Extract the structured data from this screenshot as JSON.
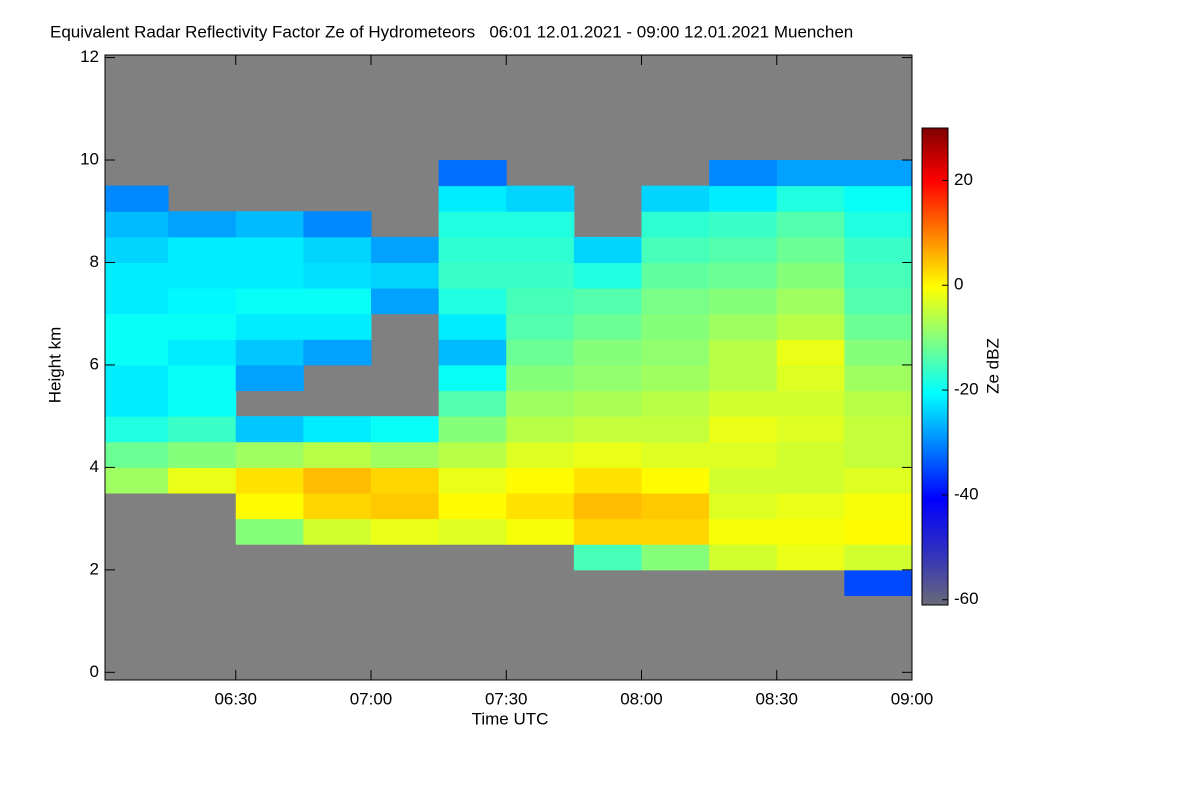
{
  "chart_data": {
    "type": "heatmap",
    "title": "Equivalent Radar Reflectivity Factor Ze of Hydrometeors   06:01 12.01.2021 - 09:00 12.01.2021 Muenchen",
    "xlabel": "Time UTC",
    "ylabel": "Height km",
    "colorbar_label": "Ze dBZ",
    "xlim": [
      361,
      540
    ],
    "xticks": [
      {
        "value": 390,
        "label": "06:30"
      },
      {
        "value": 420,
        "label": "07:00"
      },
      {
        "value": 450,
        "label": "07:30"
      },
      {
        "value": 480,
        "label": "08:00"
      },
      {
        "value": 510,
        "label": "08:30"
      },
      {
        "value": 540,
        "label": "09:00"
      }
    ],
    "ylim": [
      -0.15,
      12.05
    ],
    "yticks": [
      0,
      2,
      4,
      6,
      8,
      10,
      12
    ],
    "x_edges": [
      361,
      375,
      390,
      405,
      420,
      435,
      450,
      465,
      480,
      495,
      510,
      525,
      540
    ],
    "y_edges": [
      0,
      0.5,
      1,
      1.5,
      2,
      2.5,
      3,
      3.5,
      4,
      4.5,
      5,
      5.5,
      6,
      6.5,
      7,
      7.5,
      8,
      8.5,
      9,
      9.5,
      10,
      10.5,
      11,
      11.5,
      12
    ],
    "values": [
      [
        null,
        null,
        null,
        null,
        null,
        null,
        null,
        -8,
        -12,
        -18,
        -22,
        -22,
        -20,
        -20,
        -22,
        -22,
        -24,
        -26,
        -30,
        null,
        null,
        null,
        null,
        null
      ],
      [
        null,
        null,
        null,
        null,
        null,
        null,
        null,
        -2,
        -10,
        -16,
        -20,
        -20,
        -22,
        -20,
        -21,
        -22,
        -22,
        -28,
        null,
        null,
        null,
        null,
        null,
        null
      ],
      [
        null,
        null,
        null,
        null,
        null,
        -10,
        0,
        2,
        -8,
        -25,
        null,
        -28,
        -25,
        -22,
        -20,
        -22,
        -22,
        -26,
        null,
        null,
        null,
        null,
        null,
        null
      ],
      [
        null,
        null,
        null,
        null,
        null,
        -4,
        3,
        5,
        -6,
        -22,
        null,
        null,
        -28,
        -22,
        -20,
        -23,
        -24,
        -30,
        null,
        null,
        null,
        null,
        null,
        null
      ],
      [
        null,
        null,
        null,
        null,
        null,
        -2,
        4,
        3,
        -8,
        -20,
        null,
        null,
        null,
        null,
        -28,
        -24,
        -28,
        null,
        null,
        null,
        null,
        null,
        null,
        null
      ],
      [
        null,
        null,
        null,
        null,
        null,
        -3,
        0,
        -2,
        -6,
        -10,
        -14,
        -20,
        -26,
        -22,
        -18,
        -16,
        -17,
        -18,
        -22,
        -32,
        null,
        null,
        null,
        null
      ],
      [
        null,
        null,
        null,
        null,
        null,
        -1,
        2,
        0,
        -3,
        -6,
        -8,
        -10,
        -12,
        -14,
        -15,
        -16,
        -17,
        -18,
        -24,
        null,
        null,
        null,
        null,
        null
      ],
      [
        null,
        null,
        null,
        null,
        -15,
        3,
        5,
        2,
        -2,
        -5,
        -7,
        -9,
        -10,
        -12,
        -14,
        -18,
        -24,
        null,
        null,
        null,
        null,
        null,
        null,
        null
      ],
      [
        null,
        null,
        null,
        null,
        -10,
        3,
        4,
        0,
        -3,
        -5,
        -6,
        -8,
        -9,
        -10,
        -11,
        -13,
        -15,
        -17,
        -24,
        null,
        null,
        null,
        null,
        null
      ],
      [
        null,
        null,
        null,
        null,
        -4,
        -1,
        -3,
        -4,
        -3,
        -2,
        -4,
        -6,
        -6,
        -8,
        -10,
        -12,
        -14,
        -16,
        -22,
        -30,
        null,
        null,
        null,
        null
      ],
      [
        null,
        null,
        null,
        null,
        -2,
        -1,
        -2,
        -4,
        -4,
        -3,
        -4,
        -3,
        -2,
        -6,
        -8,
        -10,
        -12,
        -14,
        -18,
        -28,
        null,
        null,
        null,
        null
      ],
      [
        null,
        null,
        null,
        -35,
        -4,
        0,
        -1,
        -3,
        -5,
        -5,
        -6,
        -8,
        -10,
        -12,
        -14,
        -15,
        -16,
        -18,
        -20,
        -28,
        null,
        null,
        null,
        null
      ]
    ],
    "clim": [
      -61,
      30
    ],
    "cticks": [
      20,
      0,
      -20,
      -40,
      -60
    ],
    "colors": [
      "#6a6a78",
      "#3030c0",
      "#0000ff",
      "#0080ff",
      "#00ffff",
      "#80ff80",
      "#ffff00",
      "#ff8000",
      "#ff0000",
      "#800000"
    ],
    "background_color": "#808080"
  }
}
